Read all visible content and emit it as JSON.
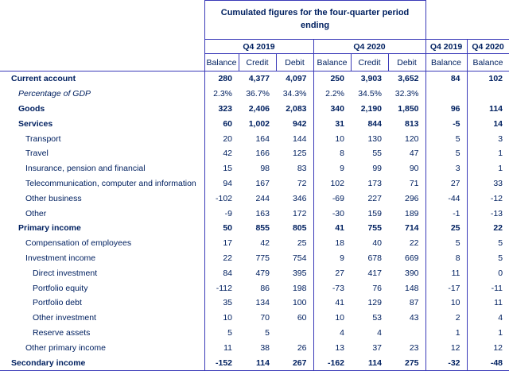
{
  "colors": {
    "text": "#002060",
    "border": "#3a3ab8"
  },
  "chart_data": {
    "type": "table",
    "title": "Cumulated figures for the four-quarter period ending",
    "column_groups": [
      {
        "label": "Q4 2019",
        "span": 3
      },
      {
        "label": "Q4 2020",
        "span": 3
      },
      {
        "label": "Q4 2019",
        "span": 1
      },
      {
        "label": "Q4 2020",
        "span": 1
      }
    ],
    "columns": [
      "Balance",
      "Credit",
      "Debit",
      "Balance",
      "Credit",
      "Debit",
      "Balance",
      "Balance"
    ],
    "rows": [
      {
        "label": "Current account",
        "emphasis": "bold",
        "indent": 0,
        "values": [
          "280",
          "4,377",
          "4,097",
          "250",
          "3,903",
          "3,652",
          "84",
          "102"
        ]
      },
      {
        "label": "Percentage of GDP",
        "emphasis": "italic",
        "indent": 1,
        "values": [
          "2.3%",
          "36.7%",
          "34.3%",
          "2.2%",
          "34.5%",
          "32.3%",
          "",
          ""
        ]
      },
      {
        "label": "Goods",
        "emphasis": "bold",
        "indent": 1,
        "values": [
          "323",
          "2,406",
          "2,083",
          "340",
          "2,190",
          "1,850",
          "96",
          "114"
        ]
      },
      {
        "label": "Services",
        "emphasis": "bold",
        "indent": 1,
        "values": [
          "60",
          "1,002",
          "942",
          "31",
          "844",
          "813",
          "-5",
          "14"
        ]
      },
      {
        "label": "Transport",
        "emphasis": "",
        "indent": 2,
        "values": [
          "20",
          "164",
          "144",
          "10",
          "130",
          "120",
          "5",
          "3"
        ]
      },
      {
        "label": "Travel",
        "emphasis": "",
        "indent": 2,
        "values": [
          "42",
          "166",
          "125",
          "8",
          "55",
          "47",
          "5",
          "1"
        ]
      },
      {
        "label": "Insurance, pension and financial",
        "emphasis": "",
        "indent": 2,
        "values": [
          "15",
          "98",
          "83",
          "9",
          "99",
          "90",
          "3",
          "1"
        ]
      },
      {
        "label": "Telecommunication, computer and information",
        "emphasis": "",
        "indent": 2,
        "values": [
          "94",
          "167",
          "72",
          "102",
          "173",
          "71",
          "27",
          "33"
        ]
      },
      {
        "label": "Other business",
        "emphasis": "",
        "indent": 2,
        "values": [
          "-102",
          "244",
          "346",
          "-69",
          "227",
          "296",
          "-44",
          "-12"
        ]
      },
      {
        "label": "Other",
        "emphasis": "",
        "indent": 2,
        "values": [
          "-9",
          "163",
          "172",
          "-30",
          "159",
          "189",
          "-1",
          "-13"
        ]
      },
      {
        "label": "Primary income",
        "emphasis": "bold",
        "indent": 1,
        "values": [
          "50",
          "855",
          "805",
          "41",
          "755",
          "714",
          "25",
          "22"
        ]
      },
      {
        "label": "Compensation of employees",
        "emphasis": "",
        "indent": 2,
        "values": [
          "17",
          "42",
          "25",
          "18",
          "40",
          "22",
          "5",
          "5"
        ]
      },
      {
        "label": "Investment income",
        "emphasis": "",
        "indent": 2,
        "values": [
          "22",
          "775",
          "754",
          "9",
          "678",
          "669",
          "8",
          "5"
        ]
      },
      {
        "label": "Direct investment",
        "emphasis": "",
        "indent": 3,
        "values": [
          "84",
          "479",
          "395",
          "27",
          "417",
          "390",
          "11",
          "0"
        ]
      },
      {
        "label": "Portfolio equity",
        "emphasis": "",
        "indent": 3,
        "values": [
          "-112",
          "86",
          "198",
          "-73",
          "76",
          "148",
          "-17",
          "-11"
        ]
      },
      {
        "label": "Portfolio debt",
        "emphasis": "",
        "indent": 3,
        "values": [
          "35",
          "134",
          "100",
          "41",
          "129",
          "87",
          "10",
          "11"
        ]
      },
      {
        "label": "Other investment",
        "emphasis": "",
        "indent": 3,
        "values": [
          "10",
          "70",
          "60",
          "10",
          "53",
          "43",
          "2",
          "4"
        ]
      },
      {
        "label": "Reserve assets",
        "emphasis": "",
        "indent": 3,
        "values": [
          "5",
          "5",
          "",
          "4",
          "4",
          "",
          "1",
          "1"
        ]
      },
      {
        "label": "Other primary income",
        "emphasis": "",
        "indent": 2,
        "values": [
          "11",
          "38",
          "26",
          "13",
          "37",
          "23",
          "12",
          "12"
        ]
      },
      {
        "label": "Secondary income",
        "emphasis": "bold",
        "indent": 0,
        "values": [
          "-152",
          "114",
          "267",
          "-162",
          "114",
          "275",
          "-32",
          "-48"
        ]
      }
    ]
  }
}
